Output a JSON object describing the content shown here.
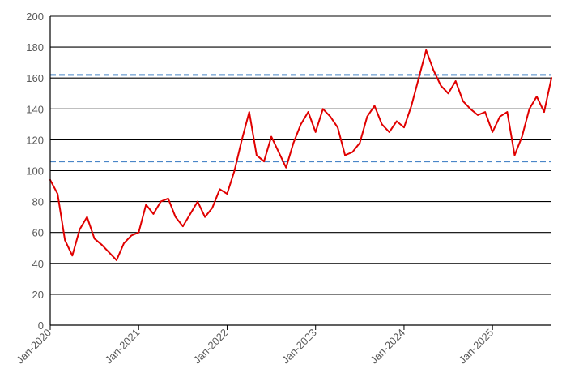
{
  "chart_data": {
    "type": "line",
    "title": "",
    "xlabel": "",
    "ylabel": "",
    "ylim": [
      0,
      200
    ],
    "yticks": [
      0,
      20,
      40,
      60,
      80,
      100,
      120,
      140,
      160,
      180,
      200
    ],
    "xlim": [
      "2020-01",
      "2025-09"
    ],
    "xticks": [
      "Jan-2020",
      "Jan-2021",
      "Jan-2022",
      "Jan-2023",
      "Jan-2024",
      "Jan-2025"
    ],
    "grid": true,
    "legend": "none",
    "series": [
      {
        "color": "#e00000",
        "x": [
          "2020-01",
          "2020-02",
          "2020-03",
          "2020-04",
          "2020-05",
          "2020-06",
          "2020-07",
          "2020-08",
          "2020-09",
          "2020-10",
          "2020-11",
          "2020-12",
          "2021-01",
          "2021-02",
          "2021-03",
          "2021-04",
          "2021-05",
          "2021-06",
          "2021-07",
          "2021-08",
          "2021-09",
          "2021-10",
          "2021-11",
          "2021-12",
          "2022-01",
          "2022-02",
          "2022-03",
          "2022-04",
          "2022-05",
          "2022-06",
          "2022-07",
          "2022-08",
          "2022-09",
          "2022-10",
          "2022-11",
          "2022-12",
          "2023-01",
          "2023-02",
          "2023-03",
          "2023-04",
          "2023-05",
          "2023-06",
          "2023-07",
          "2023-08",
          "2023-09",
          "2023-10",
          "2023-11",
          "2023-12",
          "2024-01",
          "2024-02",
          "2024-03",
          "2024-04",
          "2024-05",
          "2024-06",
          "2024-07",
          "2024-08",
          "2024-09",
          "2024-10",
          "2024-11",
          "2024-12",
          "2025-01",
          "2025-02",
          "2025-03",
          "2025-04",
          "2025-05",
          "2025-06",
          "2025-07",
          "2025-08",
          "2025-09"
        ],
        "values": [
          94,
          85,
          55,
          45,
          62,
          70,
          56,
          52,
          47,
          42,
          53,
          58,
          60,
          78,
          72,
          80,
          82,
          70,
          64,
          72,
          80,
          70,
          76,
          88,
          85,
          100,
          120,
          138,
          110,
          106,
          122,
          112,
          102,
          118,
          130,
          138,
          125,
          140,
          135,
          128,
          110,
          112,
          118,
          135,
          142,
          130,
          125,
          132,
          128,
          142,
          160,
          178,
          165,
          155,
          150,
          158,
          145,
          140,
          136,
          138,
          125,
          135,
          138,
          110,
          122,
          140,
          148,
          138,
          160
        ]
      }
    ],
    "reference_lines": [
      106,
      162
    ]
  }
}
